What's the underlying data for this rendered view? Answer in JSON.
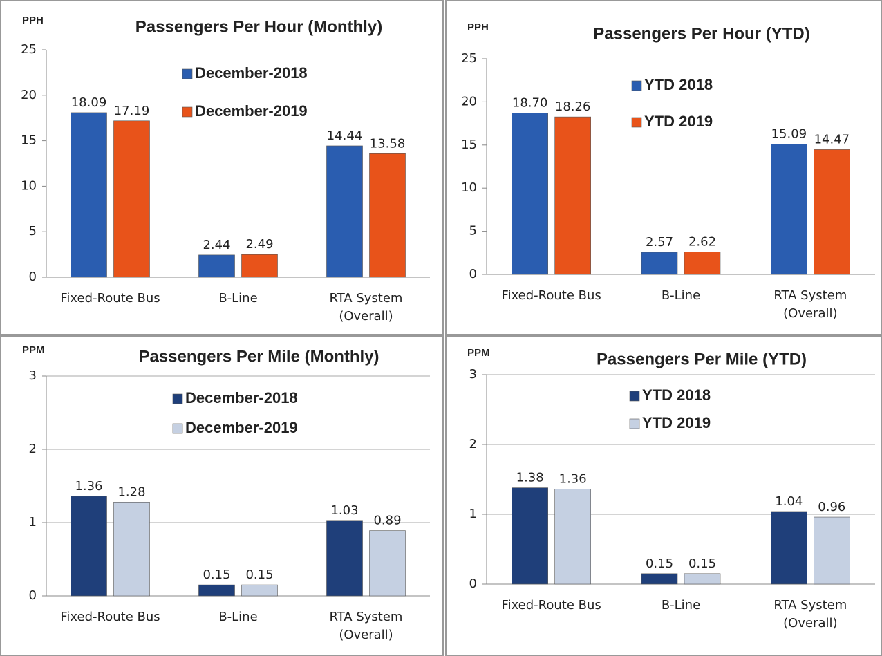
{
  "chart_data": [
    {
      "type": "bar",
      "title": "Passengers Per Hour (Monthly)",
      "y_label": "PPH",
      "categories": [
        "Fixed-Route Bus",
        "B-Line",
        "RTA System (Overall)"
      ],
      "series": [
        {
          "name": "December-2018",
          "color": "#2a5db0",
          "values": [
            18.09,
            2.44,
            14.44
          ],
          "value_labels": [
            "18.09",
            "2.44",
            "14.44"
          ]
        },
        {
          "name": "December-2019",
          "color": "#e8531a",
          "values": [
            17.19,
            2.49,
            13.58
          ],
          "value_labels": [
            "17.19",
            "2.49",
            "13.58"
          ]
        }
      ],
      "ylim": [
        0,
        25
      ],
      "yticks": [
        0,
        5,
        10,
        15,
        20,
        25
      ],
      "grid": false
    },
    {
      "type": "bar",
      "title": "Passengers Per Hour (YTD)",
      "y_label": "PPH",
      "categories": [
        "Fixed-Route Bus",
        "B-Line",
        "RTA System (Overall)"
      ],
      "series": [
        {
          "name": "YTD 2018",
          "color": "#2a5db0",
          "values": [
            18.7,
            2.57,
            15.09
          ],
          "value_labels": [
            "18.70",
            "2.57",
            "15.09"
          ]
        },
        {
          "name": "YTD 2019",
          "color": "#e8531a",
          "values": [
            18.26,
            2.62,
            14.47
          ],
          "value_labels": [
            "18.26",
            "2.62",
            "14.47"
          ]
        }
      ],
      "ylim": [
        0,
        25
      ],
      "yticks": [
        0,
        5,
        10,
        15,
        20,
        25
      ],
      "grid": false
    },
    {
      "type": "bar",
      "title": "Passengers Per Mile (Monthly)",
      "y_label": "PPM",
      "categories": [
        "Fixed-Route Bus",
        "B-Line",
        "RTA System (Overall)"
      ],
      "series": [
        {
          "name": "December-2018",
          "color": "#1f3f7a",
          "values": [
            1.36,
            0.15,
            1.03
          ],
          "value_labels": [
            "1.36",
            "0.15",
            "1.03"
          ]
        },
        {
          "name": "December-2019",
          "color": "#c5d0e2",
          "values": [
            1.28,
            0.15,
            0.89
          ],
          "value_labels": [
            "1.28",
            "0.15",
            "0.89"
          ]
        }
      ],
      "ylim": [
        0,
        3
      ],
      "yticks": [
        0,
        1,
        2,
        3
      ],
      "grid": true
    },
    {
      "type": "bar",
      "title": "Passengers Per Mile (YTD)",
      "y_label": "PPM",
      "categories": [
        "Fixed-Route Bus",
        "B-Line",
        "RTA System (Overall)"
      ],
      "series": [
        {
          "name": "YTD 2018",
          "color": "#1f3f7a",
          "values": [
            1.38,
            0.15,
            1.04
          ],
          "value_labels": [
            "1.38",
            "0.15",
            "1.04"
          ]
        },
        {
          "name": "YTD 2019",
          "color": "#c5d0e2",
          "values": [
            1.36,
            0.15,
            0.96
          ],
          "value_labels": [
            "1.36",
            "0.15",
            "0.96"
          ]
        }
      ],
      "ylim": [
        0,
        3
      ],
      "yticks": [
        0,
        1,
        2,
        3
      ],
      "grid": true
    }
  ]
}
